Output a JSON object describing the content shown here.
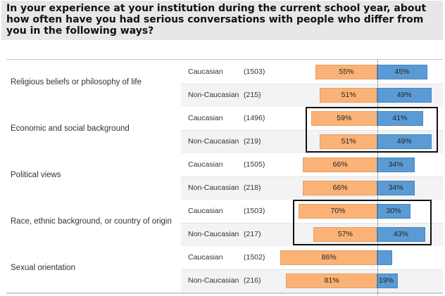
{
  "question": "In your experience at your institution during the current school year, about how often have you had serious conversations with people who differ from you in the following ways?",
  "chart_data": {
    "type": "bar",
    "orientation": "horizontal-diverging",
    "topics": [
      {
        "label": "Religious beliefs or philosophy of life",
        "rows": [
          {
            "group": "Caucasian",
            "n": "(1503)",
            "often": 55,
            "rarely": 45,
            "often_label": "55%",
            "rarely_label": "45%"
          },
          {
            "group": "Non-Caucasian",
            "n": "(215)",
            "often": 51,
            "rarely": 49,
            "often_label": "51%",
            "rarely_label": "49%"
          }
        ]
      },
      {
        "label": "Economic and social background",
        "highlighted": true,
        "rows": [
          {
            "group": "Caucasian",
            "n": "(1496)",
            "often": 59,
            "rarely": 41,
            "often_label": "59%",
            "rarely_label": "41%"
          },
          {
            "group": "Non-Caucasian",
            "n": "(219)",
            "often": 51,
            "rarely": 49,
            "often_label": "51%",
            "rarely_label": "49%"
          }
        ]
      },
      {
        "label": "Political views",
        "rows": [
          {
            "group": "Caucasian",
            "n": "(1505)",
            "often": 66,
            "rarely": 34,
            "often_label": "66%",
            "rarely_label": "34%"
          },
          {
            "group": "Non-Caucasian",
            "n": "(218)",
            "often": 66,
            "rarely": 34,
            "often_label": "66%",
            "rarely_label": "34%"
          }
        ]
      },
      {
        "label": "Race, ethnic background, or country of origin",
        "highlighted": true,
        "rows": [
          {
            "group": "Caucasian",
            "n": "(1503)",
            "often": 70,
            "rarely": 30,
            "often_label": "70%",
            "rarely_label": "30%"
          },
          {
            "group": "Non-Caucasian",
            "n": "(217)",
            "often": 57,
            "rarely": 43,
            "often_label": "57%",
            "rarely_label": "43%"
          }
        ]
      },
      {
        "label": "Sexual orientation",
        "rows": [
          {
            "group": "Caucasian",
            "n": "(1502)",
            "often": 86,
            "rarely": 14,
            "often_label": "86%",
            "rarely_label": ""
          },
          {
            "group": "Non-Caucasian",
            "n": "(216)",
            "often": 81,
            "rarely": 19,
            "often_label": "81%",
            "rarely_label": "19%"
          }
        ]
      }
    ],
    "colors": {
      "often": "#fbb276",
      "rarely": "#5b9bd5",
      "highlight": "#111111"
    }
  }
}
